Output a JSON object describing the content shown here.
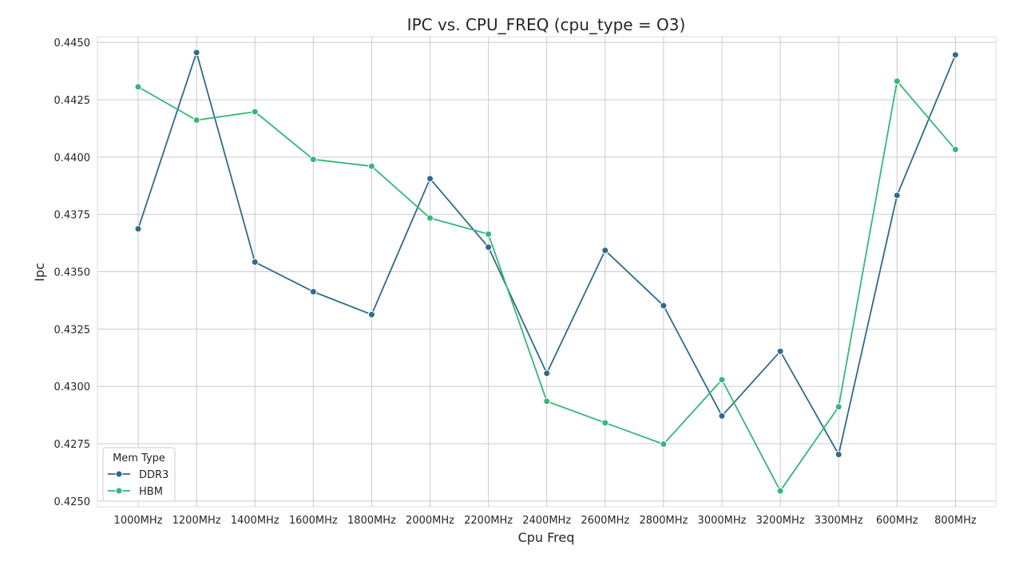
{
  "chart_data": {
    "type": "line",
    "title": "IPC vs. CPU_FREQ (cpu_type = O3)",
    "xlabel": "Cpu Freq",
    "ylabel": "Ipc",
    "categories": [
      "1000MHz",
      "1200MHz",
      "1400MHz",
      "1600MHz",
      "1800MHz",
      "2000MHz",
      "2200MHz",
      "2400MHz",
      "2600MHz",
      "2800MHz",
      "3000MHz",
      "3200MHz",
      "3300MHz",
      "600MHz",
      "800MHz"
    ],
    "ylim": [
      0.42475,
      0.44525
    ],
    "yticks": [
      "0.4250",
      "0.4275",
      "0.4300",
      "0.4325",
      "0.4350",
      "0.4375",
      "0.4400",
      "0.4425",
      "0.4450"
    ],
    "grid": true,
    "legend": {
      "title": "Mem Type",
      "placement": "lower-left"
    },
    "series": [
      {
        "name": "DDR3",
        "color": "#2f6a8a",
        "values": [
          0.43687,
          0.44456,
          0.43542,
          0.43413,
          0.43313,
          0.43906,
          0.43607,
          0.43057,
          0.43593,
          0.43352,
          0.42871,
          0.43153,
          0.42703,
          0.43833,
          0.44446
        ]
      },
      {
        "name": "HBM",
        "color": "#35b779",
        "values": [
          0.44306,
          0.44161,
          0.44198,
          0.4399,
          0.4396,
          0.43734,
          0.43664,
          0.42935,
          0.42841,
          0.42748,
          0.43029,
          0.42544,
          0.42911,
          0.44331,
          0.44033
        ]
      }
    ]
  }
}
